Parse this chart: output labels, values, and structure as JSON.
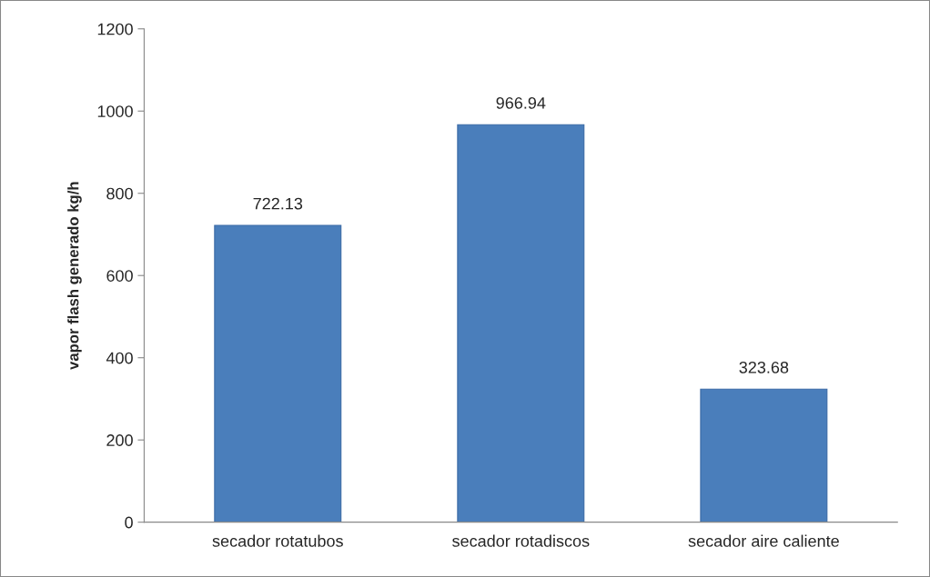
{
  "chart_data": {
    "type": "bar",
    "categories": [
      "secador rotatubos",
      "secador rotadiscos",
      "secador aire caliente"
    ],
    "values": [
      722.13,
      966.94,
      323.68
    ],
    "color": "#4a7ebb",
    "ylabel": "vapor flash generado kg/h",
    "ylim": [
      0,
      1200
    ],
    "yticks": [
      0,
      200,
      400,
      600,
      800,
      1000,
      1200
    ],
    "data_labels": true,
    "grid": false,
    "legend": false
  }
}
